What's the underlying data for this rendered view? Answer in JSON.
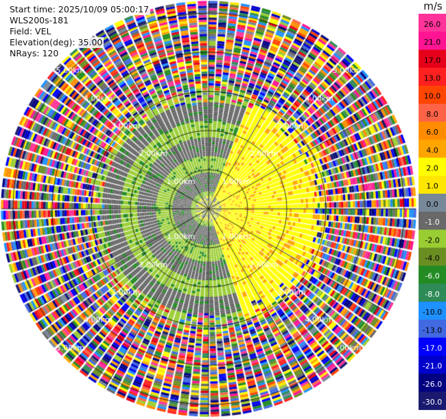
{
  "header": {
    "start_time": "Start time: 2025/10/09 05:00:17",
    "instrument": "WLS200s-181",
    "field": "Field: VEL",
    "elevation": "Elevation(deg): 35.00",
    "nrays": "NRays: 120"
  },
  "colorbar": {
    "unit": "m/s",
    "ticks": [
      "26.0",
      "21.0",
      "17.0",
      "13.0",
      "10.0",
      "8.0",
      "6.0",
      "4.0",
      "2.0",
      "1.0",
      "0.0",
      "-1.0",
      "-2.0",
      "-4.0",
      "-6.0",
      "-8.0",
      "-10.0",
      "-13.0",
      "-17.0",
      "-21.0",
      "-26.0",
      "-30.0"
    ],
    "colors": [
      "#ff3399",
      "#ff1493",
      "#e6001a",
      "#ff2020",
      "#ff4500",
      "#ff6347",
      "#ff8c00",
      "#ffa500",
      "#ffff00",
      "#ffe600",
      "#778899",
      "#696969",
      "#9acd32",
      "#6b8e23",
      "#228b22",
      "#2e8b57",
      "#1e90ff",
      "#4169e1",
      "#0000ff",
      "#0000cd",
      "#000080",
      "#191970"
    ]
  },
  "chart_data": {
    "type": "ppi",
    "field": "VEL",
    "units": "m/s",
    "nrays": 120,
    "range_rings_km": [
      1,
      2,
      3,
      4,
      5
    ],
    "ring_labels": [
      "1.00km",
      "2.00km",
      "3.00km",
      "4.00km",
      "5.00km"
    ],
    "max_range_km": 5.3,
    "value_bins": [
      -30,
      -26,
      -21,
      -17,
      -13,
      -10,
      -8,
      -6,
      -4,
      -2,
      -1,
      0,
      1,
      2,
      4,
      6,
      8,
      10,
      13,
      17,
      21,
      26
    ],
    "pattern": {
      "near_field_km": 2.6,
      "positive_sector_deg": [
        20,
        160
      ],
      "positive_value": 3,
      "negative_value": -2,
      "far_field": "noise"
    }
  }
}
